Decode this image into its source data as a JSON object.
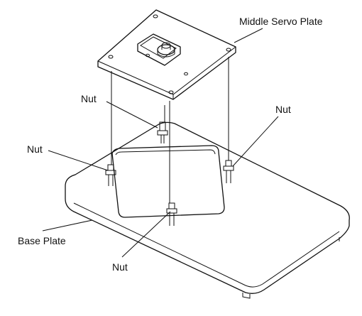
{
  "labels": {
    "middle_servo_plate": "Middle Servo Plate",
    "nut_top": "Nut",
    "nut_right": "Nut",
    "nut_left": "Nut",
    "base_plate": "Base Plate",
    "nut_bottom": "Nut"
  },
  "colors": {
    "line": "#111111",
    "background": "#ffffff"
  }
}
